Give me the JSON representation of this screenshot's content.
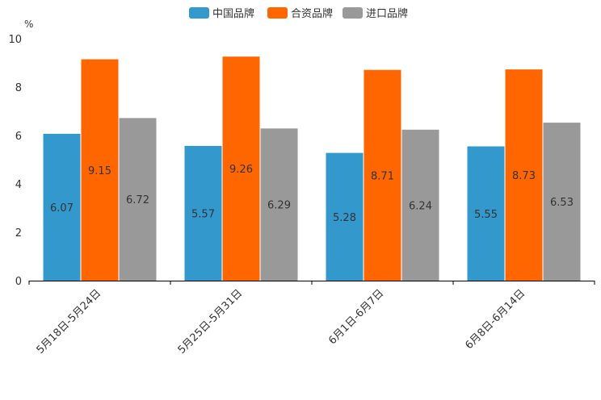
{
  "chart_data": {
    "type": "bar",
    "unit": "%",
    "categories": [
      "5月18日-5月24日",
      "5月25日-5月31日",
      "6月1日-6月7日",
      "6月8日-6月14日"
    ],
    "series": [
      {
        "name": "中国品牌",
        "color": "#3399cc",
        "values": [
          6.07,
          5.57,
          5.28,
          5.55
        ]
      },
      {
        "name": "合资品牌",
        "color": "#ff6600",
        "values": [
          9.15,
          9.26,
          8.71,
          8.73
        ]
      },
      {
        "name": "进口品牌",
        "color": "#999999",
        "values": [
          6.72,
          6.29,
          6.24,
          6.53
        ]
      }
    ],
    "yticks": [
      "0",
      "2",
      "4",
      "6",
      "8",
      "10"
    ],
    "ylim": [
      0,
      10
    ],
    "legend_position": "top-center",
    "grid": false
  }
}
